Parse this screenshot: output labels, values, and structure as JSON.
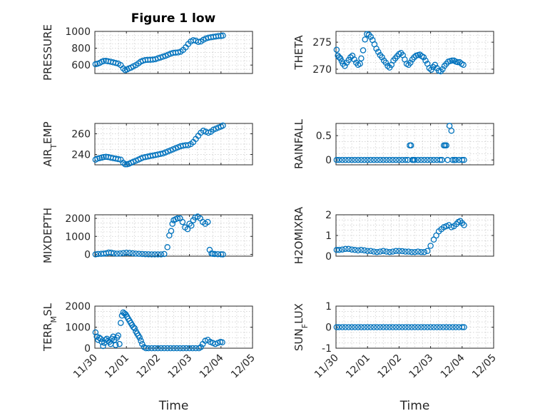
{
  "figure": {
    "title": "Figure 1 low"
  },
  "chart_data": [
    {
      "type": "scatter",
      "title": "Figure 1 low",
      "ylabel": "PRESSURE",
      "xlabel": "",
      "ylim": [
        500,
        1000
      ],
      "yticks": [
        600,
        800,
        1000
      ],
      "grid": true,
      "x": [
        0.02,
        0.08,
        0.15,
        0.22,
        0.28,
        0.35,
        0.42,
        0.5,
        0.58,
        0.66,
        0.74,
        0.82,
        0.9,
        0.96,
        1.02,
        1.08,
        1.15,
        1.22,
        1.3,
        1.38,
        1.45,
        1.52,
        1.6,
        1.68,
        1.76,
        1.84,
        1.92,
        2.0,
        2.08,
        2.16,
        2.24,
        2.32,
        2.4,
        2.48,
        2.56,
        2.64,
        2.72,
        2.8,
        2.88,
        2.96,
        3.04,
        3.12,
        3.2,
        3.28,
        3.36,
        3.44,
        3.52,
        3.6,
        3.68,
        3.76,
        3.84,
        3.92,
        4.0,
        4.06
      ],
      "y": [
        610,
        615,
        625,
        640,
        648,
        650,
        645,
        640,
        632,
        625,
        618,
        600,
        560,
        540,
        548,
        560,
        570,
        585,
        600,
        620,
        640,
        652,
        660,
        662,
        663,
        665,
        670,
        680,
        690,
        700,
        710,
        722,
        735,
        745,
        748,
        750,
        760,
        780,
        810,
        850,
        880,
        895,
        890,
        875,
        880,
        900,
        915,
        925,
        930,
        935,
        940,
        945,
        945,
        950
      ],
      "color": "#0072BD"
    },
    {
      "type": "scatter",
      "title": "",
      "ylabel": "THETA",
      "xlabel": "",
      "ylim": [
        269.2,
        277
      ],
      "yticks": [
        270,
        275
      ],
      "grid": true,
      "x": [
        0.02,
        0.06,
        0.1,
        0.14,
        0.18,
        0.22,
        0.28,
        0.34,
        0.4,
        0.46,
        0.52,
        0.58,
        0.64,
        0.7,
        0.76,
        0.8,
        0.86,
        0.92,
        0.98,
        1.04,
        1.1,
        1.16,
        1.22,
        1.28,
        1.34,
        1.4,
        1.46,
        1.52,
        1.58,
        1.64,
        1.7,
        1.76,
        1.82,
        1.88,
        1.94,
        2.0,
        2.06,
        2.12,
        2.18,
        2.24,
        2.3,
        2.36,
        2.42,
        2.48,
        2.54,
        2.6,
        2.66,
        2.72,
        2.78,
        2.84,
        2.9,
        2.96,
        3.02,
        3.08,
        3.14,
        3.2,
        3.26,
        3.32,
        3.38,
        3.44,
        3.5,
        3.56,
        3.62,
        3.68,
        3.74,
        3.8,
        3.86,
        3.92,
        3.98,
        4.04
      ],
      "y": [
        273.6,
        272.5,
        272.2,
        272.0,
        271.5,
        271.0,
        270.6,
        271.2,
        271.7,
        272.2,
        272.5,
        271.8,
        271.2,
        270.8,
        271.0,
        272.0,
        273.5,
        275.5,
        276.5,
        276.4,
        276.0,
        275.4,
        274.6,
        273.8,
        273.2,
        272.6,
        272.2,
        271.6,
        271.2,
        270.6,
        270.3,
        270.8,
        271.6,
        272.0,
        272.4,
        272.8,
        273.0,
        272.6,
        271.8,
        271.0,
        270.8,
        271.2,
        271.8,
        272.2,
        272.5,
        272.6,
        272.7,
        272.4,
        272.2,
        271.6,
        271.0,
        270.2,
        269.9,
        270.4,
        270.8,
        270.2,
        269.7,
        269.6,
        270.0,
        270.6,
        271.0,
        271.4,
        271.5,
        271.6,
        271.6,
        271.4,
        271.3,
        271.3,
        271.0,
        270.8
      ],
      "color": "#0072BD"
    },
    {
      "type": "scatter",
      "title": "",
      "ylabel": "AIR_TEMP",
      "xlabel": "",
      "ylim": [
        230,
        270
      ],
      "yticks": [
        240,
        260
      ],
      "grid": true,
      "x": [
        0.02,
        0.08,
        0.15,
        0.22,
        0.28,
        0.35,
        0.42,
        0.5,
        0.58,
        0.66,
        0.74,
        0.82,
        0.9,
        0.96,
        1.02,
        1.08,
        1.15,
        1.22,
        1.3,
        1.38,
        1.45,
        1.52,
        1.6,
        1.68,
        1.76,
        1.84,
        1.92,
        2.0,
        2.08,
        2.16,
        2.24,
        2.32,
        2.4,
        2.48,
        2.56,
        2.64,
        2.72,
        2.8,
        2.88,
        2.96,
        3.04,
        3.12,
        3.2,
        3.28,
        3.36,
        3.44,
        3.52,
        3.6,
        3.68,
        3.76,
        3.84,
        3.92,
        4.0,
        4.06
      ],
      "y": [
        235,
        236,
        236.5,
        237,
        237.5,
        237.8,
        237.5,
        237,
        236.5,
        236,
        235.5,
        235,
        232,
        230.5,
        230.5,
        231,
        232,
        233,
        234,
        235,
        236,
        237,
        237.5,
        238,
        238.5,
        239,
        239.5,
        240,
        240.5,
        241,
        242,
        243,
        244,
        245,
        246,
        247,
        248,
        248.5,
        249,
        249,
        250,
        252,
        255,
        258,
        261,
        263,
        262,
        261,
        262,
        264,
        265,
        266,
        267,
        268
      ],
      "color": "#0072BD"
    },
    {
      "type": "scatter",
      "title": "",
      "ylabel": "RAINFALL",
      "xlabel": "",
      "ylim": [
        -0.1,
        0.75
      ],
      "yticks": [
        0,
        0.5
      ],
      "grid": true,
      "x": [
        0.02,
        0.1,
        0.2,
        0.3,
        0.4,
        0.5,
        0.6,
        0.7,
        0.8,
        0.9,
        1.0,
        1.1,
        1.2,
        1.3,
        1.4,
        1.5,
        1.6,
        1.7,
        1.8,
        1.9,
        2.0,
        2.1,
        2.2,
        2.28,
        2.34,
        2.38,
        2.42,
        2.46,
        2.5,
        2.6,
        2.7,
        2.8,
        2.9,
        3.0,
        3.1,
        3.2,
        3.3,
        3.36,
        3.42,
        3.46,
        3.5,
        3.54,
        3.6,
        3.66,
        3.7,
        3.76,
        3.8,
        3.9,
        4.0,
        4.06
      ],
      "y": [
        0,
        0,
        0,
        0,
        0,
        0,
        0,
        0,
        0,
        0,
        0,
        0,
        0,
        0,
        0,
        0,
        0,
        0,
        0,
        0,
        0,
        0,
        0,
        0,
        0.3,
        0.3,
        0,
        0,
        0,
        0,
        0,
        0,
        0,
        0,
        0,
        0,
        0,
        0,
        0.3,
        0.3,
        0.3,
        0,
        0.7,
        0.6,
        0,
        0,
        0,
        0,
        0,
        0
      ],
      "color": "#0072BD"
    },
    {
      "type": "scatter",
      "title": "",
      "ylabel": "MIXDEPTH",
      "xlabel": "",
      "ylim": [
        -100,
        2200
      ],
      "yticks": [
        0,
        1000,
        2000
      ],
      "grid": true,
      "x": [
        0.02,
        0.1,
        0.2,
        0.28,
        0.36,
        0.44,
        0.52,
        0.6,
        0.7,
        0.8,
        0.9,
        1.0,
        1.1,
        1.2,
        1.3,
        1.4,
        1.5,
        1.6,
        1.7,
        1.8,
        1.9,
        2.0,
        2.1,
        2.2,
        2.3,
        2.36,
        2.42,
        2.46,
        2.5,
        2.56,
        2.62,
        2.7,
        2.78,
        2.86,
        2.94,
        3.0,
        3.06,
        3.12,
        3.18,
        3.26,
        3.34,
        3.42,
        3.5,
        3.58,
        3.64,
        3.7,
        3.74,
        3.8,
        3.9,
        4.0,
        4.06
      ],
      "y": [
        0,
        20,
        30,
        40,
        60,
        100,
        90,
        60,
        40,
        50,
        70,
        90,
        80,
        60,
        40,
        30,
        20,
        10,
        5,
        0,
        0,
        0,
        0,
        20,
        400,
        1050,
        1300,
        1700,
        1900,
        1950,
        2000,
        2000,
        1800,
        1500,
        1400,
        1700,
        1600,
        1900,
        2050,
        2100,
        2000,
        1800,
        1700,
        1800,
        250,
        50,
        30,
        20,
        10,
        5,
        0
      ],
      "color": "#0072BD"
    },
    {
      "type": "scatter",
      "title": "",
      "ylabel": "H2OMIXRA",
      "xlabel": "",
      "ylim": [
        0,
        2
      ],
      "yticks": [
        0,
        1,
        2
      ],
      "grid": true,
      "x": [
        0.02,
        0.1,
        0.2,
        0.3,
        0.4,
        0.5,
        0.6,
        0.7,
        0.8,
        0.9,
        1.0,
        1.1,
        1.2,
        1.3,
        1.4,
        1.5,
        1.6,
        1.7,
        1.8,
        1.9,
        2.0,
        2.1,
        2.2,
        2.3,
        2.4,
        2.5,
        2.6,
        2.7,
        2.8,
        2.9,
        3.0,
        3.1,
        3.18,
        3.26,
        3.34,
        3.42,
        3.5,
        3.58,
        3.66,
        3.74,
        3.82,
        3.88,
        3.94,
        4.0,
        4.06
      ],
      "y": [
        0.3,
        0.3,
        0.32,
        0.35,
        0.35,
        0.32,
        0.3,
        0.28,
        0.3,
        0.28,
        0.25,
        0.25,
        0.22,
        0.2,
        0.22,
        0.25,
        0.22,
        0.2,
        0.22,
        0.25,
        0.25,
        0.24,
        0.22,
        0.22,
        0.2,
        0.2,
        0.22,
        0.2,
        0.2,
        0.25,
        0.5,
        0.8,
        1.0,
        1.2,
        1.3,
        1.4,
        1.45,
        1.5,
        1.4,
        1.45,
        1.55,
        1.65,
        1.7,
        1.6,
        1.5
      ],
      "color": "#0072BD"
    },
    {
      "type": "scatter",
      "title": "",
      "ylabel": "TERR_MSL",
      "xlabel": "Time",
      "xticks": [
        "11/30",
        "12/01",
        "12/02",
        "12/03",
        "12/04",
        "12/05"
      ],
      "ylim": [
        0,
        2000
      ],
      "yticks": [
        0,
        1000,
        2000
      ],
      "grid": true,
      "x": [
        0.02,
        0.06,
        0.1,
        0.14,
        0.18,
        0.22,
        0.26,
        0.3,
        0.34,
        0.38,
        0.42,
        0.46,
        0.5,
        0.54,
        0.58,
        0.62,
        0.66,
        0.7,
        0.74,
        0.78,
        0.82,
        0.86,
        0.9,
        0.94,
        0.98,
        1.02,
        1.06,
        1.1,
        1.14,
        1.18,
        1.22,
        1.26,
        1.3,
        1.34,
        1.38,
        1.42,
        1.46,
        1.5,
        1.56,
        1.62,
        1.7,
        1.8,
        1.9,
        2.0,
        2.1,
        2.2,
        2.3,
        2.4,
        2.5,
        2.6,
        2.7,
        2.8,
        2.9,
        3.0,
        3.1,
        3.2,
        3.3,
        3.36,
        3.42,
        3.5,
        3.58,
        3.66,
        3.74,
        3.82,
        3.9,
        3.98,
        4.04
      ],
      "y": [
        750,
        550,
        400,
        500,
        450,
        300,
        100,
        250,
        400,
        450,
        350,
        300,
        200,
        450,
        550,
        400,
        150,
        500,
        600,
        200,
        1200,
        1550,
        1700,
        1650,
        1600,
        1500,
        1400,
        1300,
        1200,
        1100,
        1000,
        950,
        800,
        700,
        600,
        500,
        350,
        200,
        50,
        0,
        0,
        0,
        0,
        0,
        0,
        0,
        0,
        0,
        0,
        0,
        0,
        0,
        0,
        0,
        0,
        0,
        0,
        50,
        200,
        350,
        400,
        300,
        250,
        200,
        250,
        300,
        280
      ],
      "color": "#0072BD"
    },
    {
      "type": "scatter",
      "title": "",
      "ylabel": "SUN_FLUX",
      "xlabel": "Time",
      "xticks": [
        "11/30",
        "12/01",
        "12/02",
        "12/03",
        "12/04",
        "12/05"
      ],
      "ylim": [
        -1,
        1
      ],
      "yticks": [
        -1,
        0,
        1
      ],
      "grid": true,
      "x": [
        0.02,
        0.1,
        0.2,
        0.3,
        0.4,
        0.5,
        0.6,
        0.7,
        0.8,
        0.9,
        1.0,
        1.1,
        1.2,
        1.3,
        1.4,
        1.5,
        1.6,
        1.7,
        1.8,
        1.9,
        2.0,
        2.1,
        2.2,
        2.3,
        2.4,
        2.5,
        2.6,
        2.7,
        2.8,
        2.9,
        3.0,
        3.1,
        3.2,
        3.3,
        3.4,
        3.5,
        3.6,
        3.7,
        3.8,
        3.9,
        4.0,
        4.06
      ],
      "y": [
        0,
        0,
        0,
        0,
        0,
        0,
        0,
        0,
        0,
        0,
        0,
        0,
        0,
        0,
        0,
        0,
        0,
        0,
        0,
        0,
        0,
        0,
        0,
        0,
        0,
        0,
        0,
        0,
        0,
        0,
        0,
        0,
        0,
        0,
        0,
        0,
        0,
        0,
        0,
        0,
        0,
        0
      ],
      "color": "#0072BD"
    }
  ]
}
